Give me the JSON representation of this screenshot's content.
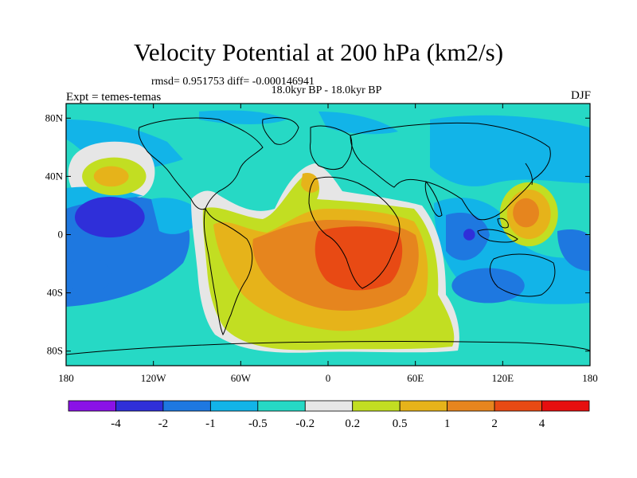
{
  "title": "Velocity Potential at 200 hPa (km2/s)",
  "stats_text": "rmsd= 0.951753 diff= -0.000146941",
  "subtitle": "18.0kyr BP - 18.0kyr BP",
  "left_label": "Expt = temes-temas",
  "right_label": "DJF",
  "axes": {
    "lat_labels": [
      "80N",
      "40N",
      "0",
      "40S",
      "80S"
    ],
    "lat_values": [
      80,
      40,
      0,
      -40,
      -80
    ],
    "lon_labels": [
      "180",
      "120W",
      "60W",
      "0",
      "60E",
      "120E",
      "180"
    ],
    "lon_values": [
      -180,
      -120,
      -60,
      0,
      60,
      120,
      180
    ],
    "lat_range": [
      -90,
      90
    ],
    "lon_range": [
      -180,
      180
    ]
  },
  "colorbar": {
    "colors": [
      "#8a12e6",
      "#2f2fd9",
      "#1e78e0",
      "#12b4e8",
      "#26d9c5",
      "#e6e6e6",
      "#c2de22",
      "#e6b31a",
      "#e6851e",
      "#e84a14",
      "#e60f0f"
    ],
    "labels": [
      "-4",
      "-2",
      "-1",
      "-0.5",
      "-0.2",
      "0.2",
      "0.5",
      "1",
      "2",
      "4"
    ]
  },
  "regions": [
    {
      "name": "north-pacific-positive",
      "lon": -147,
      "lat": 40,
      "rx": 22,
      "ry": 13,
      "level": 6
    },
    {
      "name": "north-pacific-positive-core",
      "lon": -149,
      "lat": 40,
      "rx": 12,
      "ry": 7,
      "level": 7
    },
    {
      "name": "tropical-pacific-negative",
      "lon": -150,
      "lat": 12,
      "rx": 24,
      "ry": 14,
      "level": 1
    },
    {
      "name": "south-pacific-negative",
      "lon": -165,
      "lat": -28,
      "rx": 16,
      "ry": 12,
      "level": 2
    },
    {
      "name": "west-pacific-positive",
      "lon": 138,
      "lat": 14,
      "rx": 20,
      "ry": 22,
      "level": 6
    },
    {
      "name": "west-pacific-positive-mid",
      "lon": 138,
      "lat": 14,
      "rx": 15,
      "ry": 17,
      "level": 7
    },
    {
      "name": "west-pacific-positive-core",
      "lon": 136,
      "lat": 15,
      "rx": 9,
      "ry": 10,
      "level": 8
    },
    {
      "name": "indonesia-negative",
      "lon": 97,
      "lat": 0,
      "rx": 4,
      "ry": 4,
      "level": 1
    },
    {
      "name": "indian-ocean-negative",
      "lon": 110,
      "lat": -35,
      "rx": 25,
      "ry": 12,
      "level": 2
    }
  ]
}
